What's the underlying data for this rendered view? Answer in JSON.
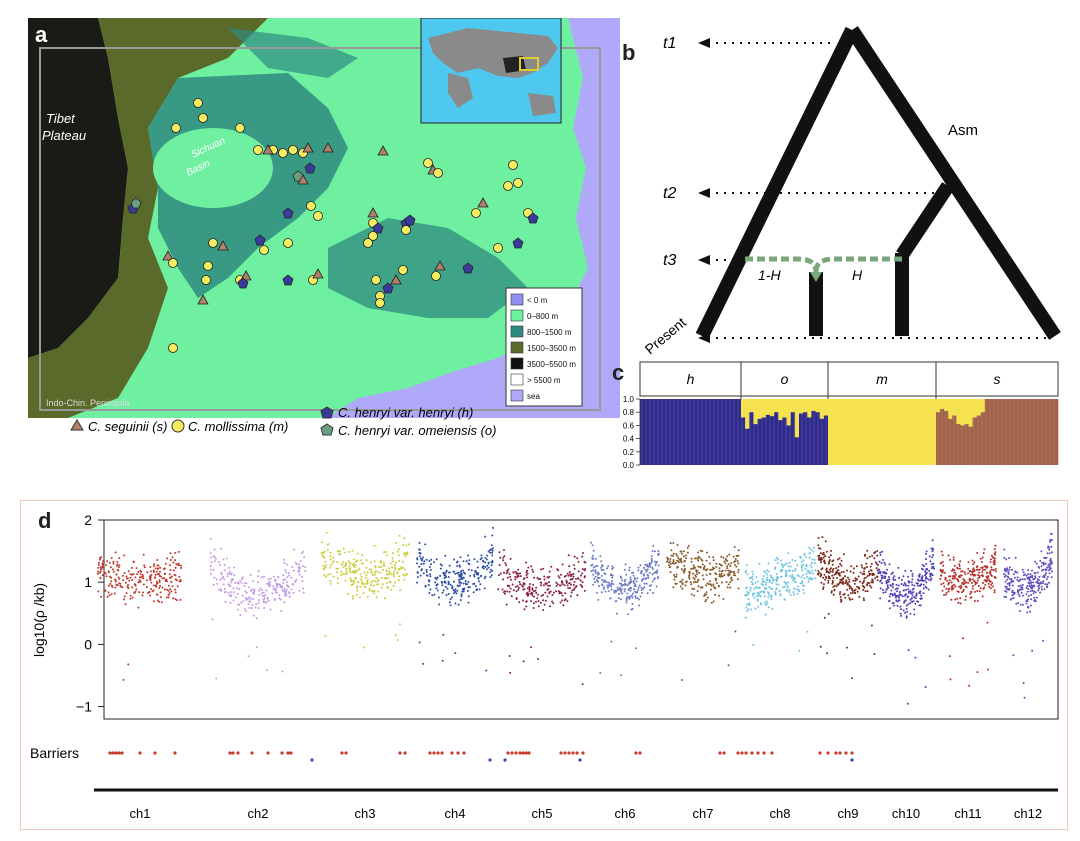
{
  "panels": {
    "a": {
      "label": "a",
      "region_labels": {
        "tibet": [
          "Tibet",
          "Plateau"
        ],
        "sichuan": [
          "Sichuan",
          "Basin"
        ],
        "indo": "Indo-Chin. Peninsula"
      },
      "elevation_legend": [
        {
          "label": "< 0 m",
          "color": "#8f8ff0"
        },
        {
          "label": "0–800 m",
          "color": "#6ff0a0"
        },
        {
          "label": "800–1500 m",
          "color": "#2f8a80"
        },
        {
          "label": "1500–3500 m",
          "color": "#5a6a2a"
        },
        {
          "label": "3500–5500 m",
          "color": "#111111"
        },
        {
          "label": "> 5500 m",
          "color": "#ffffff"
        },
        {
          "label": "sea",
          "color": "#b0a8f8"
        }
      ],
      "species_legend": [
        {
          "label": "C. seguinii (s)",
          "shape": "triangle",
          "color": "#b0806a"
        },
        {
          "label": "C. mollissima (m)",
          "shape": "circle",
          "color": "#f8ec60"
        },
        {
          "label": "C. henryi var. henryi (h)",
          "shape": "pentagon",
          "color": "#3a3a9a"
        },
        {
          "label": "C. henryi var. omeiensis (o)",
          "shape": "pentagon",
          "color": "#6aa080"
        }
      ]
    },
    "b": {
      "label": "b",
      "times": [
        "t1",
        "t2",
        "t3",
        "Present"
      ],
      "node_label": "Asm",
      "admix_left": "1-H",
      "admix_right": "H"
    },
    "c": {
      "label": "c",
      "groups": [
        "h",
        "o",
        "m",
        "s"
      ],
      "yticks": [
        "1.0",
        "0.8",
        "0.6",
        "0.4",
        "0.2",
        "0.0"
      ],
      "colors": {
        "blue": "#2e2a8c",
        "yellow": "#f5e14a",
        "brown": "#a2624a"
      }
    },
    "d": {
      "label": "d",
      "ylabel": "log10(ρ /kb)",
      "yticks": [
        "2",
        "1",
        "0",
        "−1"
      ],
      "barriers_label": "Barriers",
      "chromosomes": [
        "ch1",
        "ch2",
        "ch3",
        "ch4",
        "ch5",
        "ch6",
        "ch7",
        "ch8",
        "ch9",
        "ch10",
        "ch11",
        "ch12"
      ],
      "colors": [
        "#c0392b",
        "#c39be0",
        "#c9cd3a",
        "#2d4fa6",
        "#8a1f4a",
        "#6d7ac4",
        "#8a5a2a",
        "#6dc4e0",
        "#7a2a1a",
        "#5040b8",
        "#b8302a",
        "#6050c0"
      ]
    }
  },
  "chart_data": {
    "type": "scatter",
    "ylabel": "log10(ρ /kb)",
    "ylim": [
      -1.2,
      2
    ],
    "categories": [
      "ch1",
      "ch2",
      "ch3",
      "ch4",
      "ch5",
      "ch6",
      "ch7",
      "ch8",
      "ch9",
      "ch10",
      "ch11",
      "ch12"
    ],
    "series": [
      {
        "name": "ch1",
        "values": [
          1.2,
          1.0,
          1.1
        ]
      },
      {
        "name": "ch2",
        "values": [
          1.3,
          0.8,
          1.3
        ]
      },
      {
        "name": "ch3",
        "values": [
          1.5,
          1.1,
          1.4
        ]
      },
      {
        "name": "ch4",
        "values": [
          1.3,
          1.0,
          1.4
        ]
      },
      {
        "name": "ch5",
        "values": [
          1.2,
          0.9,
          1.2
        ]
      },
      {
        "name": "ch6",
        "values": [
          1.3,
          0.9,
          1.4
        ]
      },
      {
        "name": "ch7",
        "values": [
          1.4,
          1.1,
          1.3
        ]
      },
      {
        "name": "ch8",
        "values": [
          0.8,
          1.0,
          1.3
        ]
      },
      {
        "name": "ch9",
        "values": [
          1.4,
          1.0,
          1.3
        ]
      },
      {
        "name": "ch10",
        "values": [
          1.3,
          0.8,
          1.4
        ]
      },
      {
        "name": "ch11",
        "values": [
          1.2,
          1.0,
          1.3
        ]
      },
      {
        "name": "ch12",
        "values": [
          1.1,
          0.9,
          1.4
        ]
      }
    ]
  }
}
